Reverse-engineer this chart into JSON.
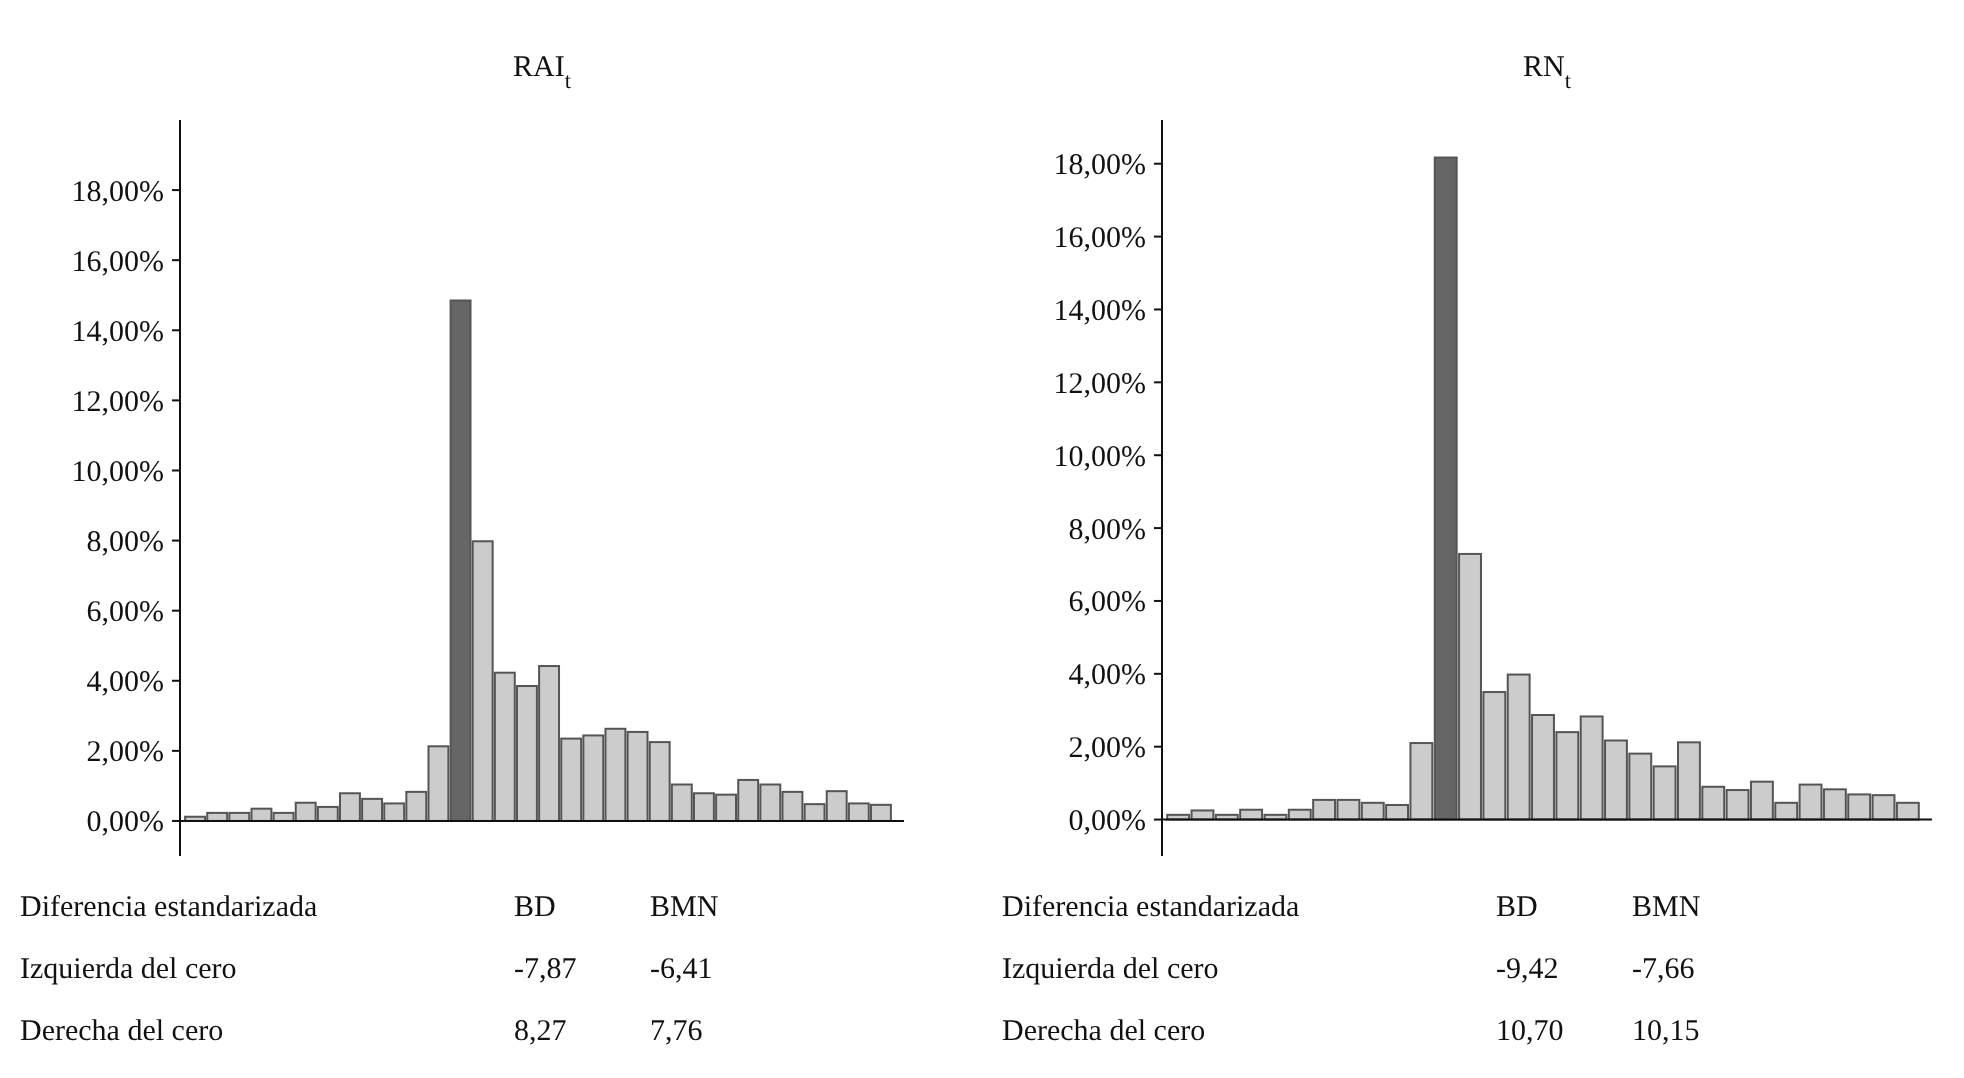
{
  "chart_data": [
    {
      "type": "bar",
      "title": "RAI$_{t}$",
      "categories": [
        null,
        null,
        null,
        null,
        null,
        null,
        null,
        null,
        null,
        null,
        null,
        null,
        null,
        null,
        null,
        null,
        null,
        null,
        null,
        null,
        null,
        null,
        null,
        null,
        null,
        null,
        null,
        null,
        null,
        null,
        null,
        null
      ],
      "values": [
        0.12,
        0.23,
        0.23,
        0.35,
        0.23,
        0.52,
        0.4,
        0.79,
        0.63,
        0.5,
        0.83,
        2.13,
        14.85,
        7.98,
        4.23,
        3.85,
        4.42,
        2.35,
        2.44,
        2.63,
        2.54,
        2.25,
        1.04,
        0.79,
        0.75,
        1.17,
        1.04,
        0.83,
        0.48,
        0.85,
        0.5,
        0.46
      ],
      "colors": [
        "#cccccc",
        "#cccccc",
        "#cccccc",
        "#cccccc",
        "#cccccc",
        "#cccccc",
        "#cccccc",
        "#cccccc",
        "#cccccc",
        "#cccccc",
        "#cccccc",
        "#cccccc",
        "#666666",
        "#cccccc",
        "#cccccc",
        "#cccccc",
        "#cccccc",
        "#cccccc",
        "#cccccc",
        "#cccccc",
        "#cccccc",
        "#cccccc",
        "#cccccc",
        "#cccccc",
        "#cccccc",
        "#cccccc",
        "#cccccc",
        "#cccccc",
        "#cccccc",
        "#cccccc",
        "#cccccc",
        "#cccccc"
      ],
      "ylim": [
        -1,
        20
      ],
      "yticks": [
        {
          "value": 0,
          "label": "0,00%"
        },
        {
          "value": 2,
          "label": "2,00%"
        },
        {
          "value": 4,
          "label": "4,00%"
        },
        {
          "value": 6,
          "label": "6,00%"
        },
        {
          "value": 8,
          "label": "8,00%"
        },
        {
          "value": 10,
          "label": "10,00%"
        },
        {
          "value": 12,
          "label": "12,00%"
        },
        {
          "value": 14,
          "label": "14,00%"
        },
        {
          "value": 16,
          "label": "16,00%"
        },
        {
          "value": 18,
          "label": "18,00%"
        }
      ],
      "tick_labels": "y",
      "annotations": [
        "Diferencia estandarizada",
        "BD",
        "BMN",
        "Izquierda del cero",
        "-7,87",
        "-6,41",
        "Derecha del cero",
        "8,27",
        "7,76"
      ]
    },
    {
      "type": "bar",
      "title": "RN$_{t}$",
      "categories": [
        null,
        null,
        null,
        null,
        null,
        null,
        null,
        null,
        null,
        null,
        null,
        null,
        null,
        null,
        null,
        null,
        null,
        null,
        null,
        null,
        null,
        null,
        null,
        null,
        null,
        null,
        null,
        null,
        null,
        null,
        null
      ],
      "values": [
        0.13,
        0.25,
        0.13,
        0.27,
        0.13,
        0.27,
        0.54,
        0.54,
        0.46,
        0.4,
        2.1,
        18.17,
        7.29,
        3.5,
        3.98,
        2.87,
        2.4,
        2.83,
        2.17,
        1.81,
        1.46,
        2.12,
        0.9,
        0.81,
        1.04,
        0.46,
        0.96,
        0.83,
        0.69,
        0.67,
        0.46
      ],
      "colors": [
        "#cccccc",
        "#cccccc",
        "#cccccc",
        "#cccccc",
        "#cccccc",
        "#cccccc",
        "#cccccc",
        "#cccccc",
        "#cccccc",
        "#cccccc",
        "#cccccc",
        "#666666",
        "#cccccc",
        "#cccccc",
        "#cccccc",
        "#cccccc",
        "#cccccc",
        "#cccccc",
        "#cccccc",
        "#cccccc",
        "#cccccc",
        "#cccccc",
        "#cccccc",
        "#cccccc",
        "#cccccc",
        "#cccccc",
        "#cccccc",
        "#cccccc",
        "#cccccc",
        "#cccccc",
        "#cccccc"
      ],
      "ylim": [
        -1,
        19.2
      ],
      "yticks": [
        {
          "value": 0,
          "label": "0,00%"
        },
        {
          "value": 2,
          "label": "2,00%"
        },
        {
          "value": 4,
          "label": "4,00%"
        },
        {
          "value": 6,
          "label": "6,00%"
        },
        {
          "value": 8,
          "label": "8,00%"
        },
        {
          "value": 10,
          "label": "10,00%"
        },
        {
          "value": 12,
          "label": "12,00%"
        },
        {
          "value": 14,
          "label": "14,00%"
        },
        {
          "value": 16,
          "label": "16,00%"
        },
        {
          "value": 18,
          "label": "18,00%"
        }
      ],
      "tick_labels": "y",
      "annotations": [
        "Diferencia estandarizada",
        "BD",
        "BMN",
        "Izquierda del cero",
        "-9,42",
        "-7,66",
        "Derecha del cero",
        "10,70",
        "10,15"
      ]
    }
  ]
}
